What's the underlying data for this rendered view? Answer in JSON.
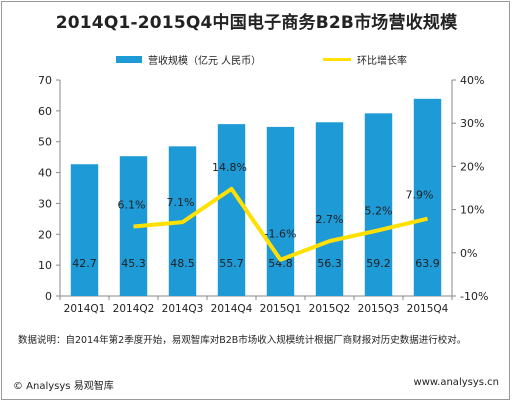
{
  "title": "2014Q1-2015Q4中国电子商务B2B市场营收规模",
  "legend": {
    "bar_label": "营收规模（亿元 人民币）",
    "line_label": "环比增长率"
  },
  "chart_data": {
    "type": "bar",
    "categories": [
      "2014Q1",
      "2014Q2",
      "2014Q3",
      "2014Q4",
      "2015Q1",
      "2015Q2",
      "2015Q3",
      "2015Q4"
    ],
    "series": [
      {
        "name": "营收规模（亿元 人民币）",
        "type": "bar",
        "axis": "left",
        "values": [
          42.7,
          45.3,
          48.5,
          55.7,
          54.8,
          56.3,
          59.2,
          63.9
        ],
        "labels": [
          "42.7",
          "45.3",
          "48.5",
          "55.7",
          "54.8",
          "56.3",
          "59.2",
          "63.9"
        ]
      },
      {
        "name": "环比增长率",
        "type": "line",
        "axis": "right",
        "values": [
          null,
          6.1,
          7.1,
          14.8,
          -1.6,
          2.7,
          5.2,
          7.9
        ],
        "labels": [
          "",
          "6.1%",
          "7.1%",
          "14.8%",
          "-1.6%",
          "2.7%",
          "5.2%",
          "7.9%"
        ]
      }
    ],
    "ylim_left": [
      0,
      70
    ],
    "yticks_left": [
      "0",
      "10",
      "20",
      "30",
      "40",
      "50",
      "60",
      "70"
    ],
    "ylim_right": [
      -10,
      40
    ],
    "yticks_right": [
      "-10%",
      "0%",
      "10%",
      "20%",
      "30%",
      "40%"
    ],
    "colors": {
      "bar": "#1e9ad6",
      "line": "#ffe000"
    },
    "grid": false,
    "legend_position": "top"
  },
  "note": "数据说明：自2014年第2季度开始，易观智库对B2B市场收入规模统计根据厂商财报对历史数据进行校对。",
  "footer": {
    "left": "© Analysys 易观智库",
    "right": "www.analysys.cn"
  }
}
